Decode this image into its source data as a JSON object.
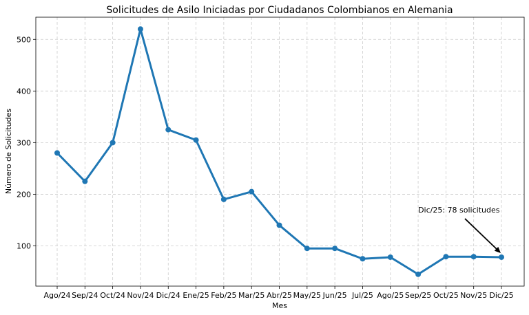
{
  "chart_data": {
    "type": "line",
    "title": "Solicitudes de Asilo Iniciadas por Ciudadanos Colombianos en Alemania",
    "xlabel": "Mes",
    "ylabel": "Número de Solicitudes",
    "categories": [
      "Ago/24",
      "Sep/24",
      "Oct/24",
      "Nov/24",
      "Dic/24",
      "Ene/25",
      "Feb/25",
      "Mar/25",
      "Abr/25",
      "May/25",
      "Jun/25",
      "Jul/25",
      "Ago/25",
      "Sep/25",
      "Oct/25",
      "Nov/25",
      "Dic/25"
    ],
    "series": [
      {
        "name": "Solicitudes",
        "color": "#1f77b4",
        "values": [
          280,
          225,
          300,
          520,
          325,
          305,
          190,
          205,
          140,
          95,
          95,
          75,
          78,
          45,
          79,
          79,
          78
        ]
      }
    ],
    "yticks": [
      100,
      200,
      300,
      400,
      500
    ],
    "ytick_labels": [
      "100",
      "200",
      "300",
      "400",
      "500"
    ],
    "ylim": [
      22,
      543
    ],
    "grid": true,
    "annotation": {
      "text": "Dic/25: 78 solicitudes",
      "category": "Dic/25",
      "value": 78,
      "text_anchor_category": "Sep/25",
      "text_value": 170
    }
  }
}
